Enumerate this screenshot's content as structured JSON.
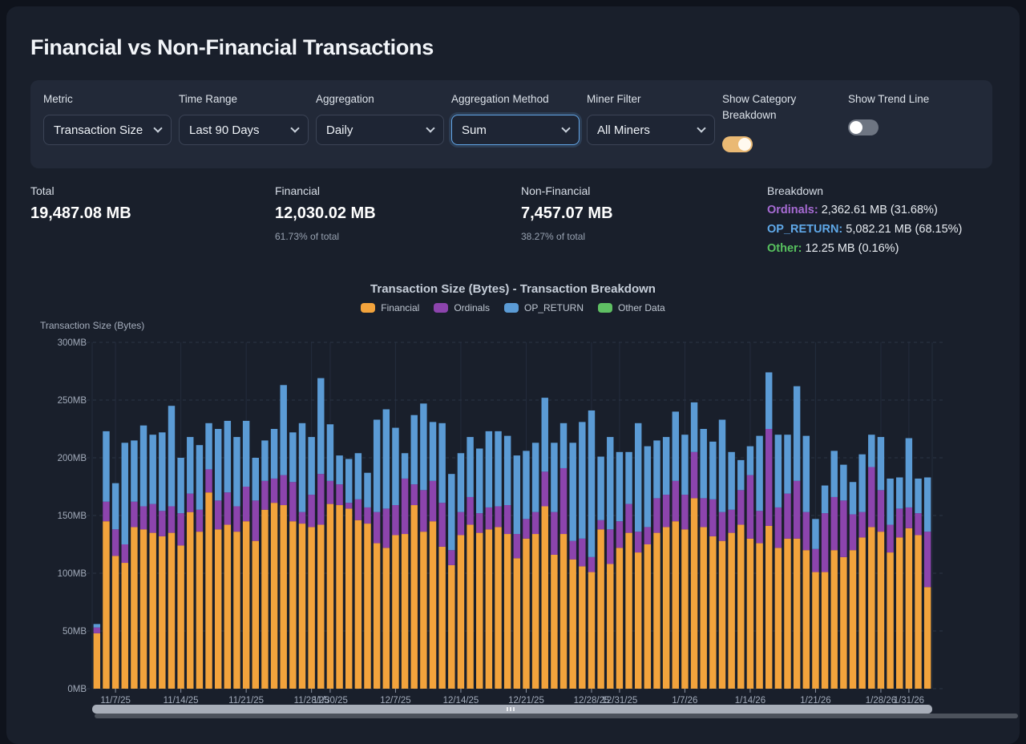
{
  "page": {
    "title": "Financial vs Non-Financial Transactions"
  },
  "controls": {
    "metric": {
      "label": "Metric",
      "value": "Transaction Size"
    },
    "time_range": {
      "label": "Time Range",
      "value": "Last 90 Days"
    },
    "aggregation": {
      "label": "Aggregation",
      "value": "Daily"
    },
    "aggregation_method": {
      "label": "Aggregation Method",
      "value": "Sum",
      "focused": true
    },
    "miner_filter": {
      "label": "Miner Filter",
      "value": "All Miners"
    },
    "show_category_breakdown": {
      "label": "Show Category Breakdown",
      "state": "on",
      "on_color": "#eab974"
    },
    "show_trend_line": {
      "label": "Show Trend Line",
      "state": "off"
    }
  },
  "stats": {
    "total": {
      "label": "Total",
      "value": "19,487.08 MB"
    },
    "financial": {
      "label": "Financial",
      "value": "12,030.02 MB",
      "subtext": "61.73% of total"
    },
    "non_financial": {
      "label": "Non-Financial",
      "value": "7,457.07 MB",
      "subtext": "38.27% of total"
    },
    "breakdown": {
      "label": "Breakdown",
      "items": [
        {
          "name": "Ordinals:",
          "value": "2,362.61 MB (31.68%)",
          "color": "#a76bd4"
        },
        {
          "name": "OP_RETURN:",
          "value": "5,082.21 MB (68.15%)",
          "color": "#5fa8e8"
        },
        {
          "name": "Other:",
          "value": "12.25 MB (0.16%)",
          "color": "#57c15e"
        }
      ]
    }
  },
  "chart_data": {
    "type": "bar",
    "stacked": true,
    "title": "Transaction Size (Bytes) - Transaction Breakdown",
    "y_axis_label": "Transaction Size (Bytes)",
    "unit": "MB",
    "ylim": [
      0,
      300
    ],
    "grid": true,
    "legend_position": "top",
    "y_ticks": [
      {
        "label": "0MB",
        "value": 0
      },
      {
        "label": "50MB",
        "value": 50
      },
      {
        "label": "100MB",
        "value": 100
      },
      {
        "label": "150MB",
        "value": 150
      },
      {
        "label": "200MB",
        "value": 200
      },
      {
        "label": "250MB",
        "value": 250
      },
      {
        "label": "300MB",
        "value": 300
      }
    ],
    "x_ticks": [
      {
        "label": "11/7/25",
        "index": 2
      },
      {
        "label": "11/14/25",
        "index": 9
      },
      {
        "label": "11/21/25",
        "index": 16
      },
      {
        "label": "11/28/25",
        "index": 23
      },
      {
        "label": "11/30/25",
        "index": 25
      },
      {
        "label": "12/7/25",
        "index": 32
      },
      {
        "label": "12/14/25",
        "index": 39
      },
      {
        "label": "12/21/25",
        "index": 46
      },
      {
        "label": "12/28/25",
        "index": 53
      },
      {
        "label": "12/31/25",
        "index": 56
      },
      {
        "label": "1/7/26",
        "index": 63
      },
      {
        "label": "1/14/26",
        "index": 70
      },
      {
        "label": "1/21/26",
        "index": 77
      },
      {
        "label": "1/28/26",
        "index": 84
      },
      {
        "label": "1/31/26",
        "index": 87
      }
    ],
    "dates": [
      "11/5/25",
      "11/6/25",
      "11/7/25",
      "11/8/25",
      "11/9/25",
      "11/10/25",
      "11/11/25",
      "11/12/25",
      "11/13/25",
      "11/14/25",
      "11/15/25",
      "11/16/25",
      "11/17/25",
      "11/18/25",
      "11/19/25",
      "11/20/25",
      "11/21/25",
      "11/22/25",
      "11/23/25",
      "11/24/25",
      "11/25/25",
      "11/26/25",
      "11/27/25",
      "11/28/25",
      "11/29/25",
      "11/30/25",
      "12/1/25",
      "12/2/25",
      "12/3/25",
      "12/4/25",
      "12/5/25",
      "12/6/25",
      "12/7/25",
      "12/8/25",
      "12/9/25",
      "12/10/25",
      "12/11/25",
      "12/12/25",
      "12/13/25",
      "12/14/25",
      "12/15/25",
      "12/16/25",
      "12/17/25",
      "12/18/25",
      "12/19/25",
      "12/20/25",
      "12/21/25",
      "12/22/25",
      "12/23/25",
      "12/24/25",
      "12/25/25",
      "12/26/25",
      "12/27/25",
      "12/28/25",
      "12/29/25",
      "12/30/25",
      "12/31/25",
      "1/1/26",
      "1/2/26",
      "1/3/26",
      "1/4/26",
      "1/5/26",
      "1/6/26",
      "1/7/26",
      "1/8/26",
      "1/9/26",
      "1/10/26",
      "1/11/26",
      "1/12/26",
      "1/13/26",
      "1/14/26",
      "1/15/26",
      "1/16/26",
      "1/17/26",
      "1/18/26",
      "1/19/26",
      "1/20/26",
      "1/21/26",
      "1/22/26",
      "1/23/26",
      "1/24/26",
      "1/25/26",
      "1/26/26",
      "1/27/26",
      "1/28/26",
      "1/29/26",
      "1/30/26",
      "1/31/26",
      "2/1/26",
      "2/2/26"
    ],
    "series": [
      {
        "name": "Financial",
        "color": "#f2a33c",
        "values": [
          48,
          145,
          115,
          109,
          140,
          138,
          135,
          132,
          135,
          124,
          153,
          136,
          170,
          138,
          142,
          136,
          145,
          128,
          155,
          161,
          159,
          145,
          143,
          140,
          142,
          160,
          159,
          156,
          146,
          143,
          126,
          122,
          133,
          134,
          159,
          136,
          145,
          123,
          107,
          133,
          142,
          135,
          138,
          140,
          134,
          113,
          130,
          134,
          158,
          116,
          134,
          112,
          106,
          101,
          138,
          108,
          122,
          135,
          118,
          125,
          135,
          140,
          145,
          138,
          165,
          140,
          132,
          128,
          135,
          142,
          130,
          126,
          141,
          122,
          130,
          130,
          120,
          101,
          101,
          120,
          114,
          120,
          131,
          140,
          136,
          118,
          131,
          139,
          133,
          88
        ]
      },
      {
        "name": "Ordinals",
        "color": "#8c44ad",
        "values": [
          5,
          17,
          23,
          16,
          22,
          20,
          25,
          22,
          23,
          28,
          16,
          19,
          20,
          25,
          28,
          22,
          30,
          35,
          25,
          21,
          26,
          34,
          10,
          28,
          44,
          20,
          18,
          5,
          18,
          14,
          27,
          34,
          26,
          48,
          18,
          36,
          35,
          38,
          13,
          20,
          24,
          17,
          19,
          18,
          25,
          21,
          17,
          19,
          30,
          37,
          57,
          16,
          24,
          13,
          8,
          30,
          23,
          25,
          18,
          15,
          30,
          28,
          35,
          30,
          40,
          25,
          32,
          25,
          20,
          30,
          55,
          28,
          84,
          35,
          39,
          50,
          33,
          20,
          51,
          46,
          49,
          31,
          22,
          52,
          36,
          24,
          25,
          18,
          19,
          48
        ]
      },
      {
        "name": "OP_RETURN",
        "color": "#5b9bd5",
        "values": [
          3,
          61,
          40,
          88,
          53,
          70,
          60,
          68,
          87,
          48,
          49,
          56,
          40,
          62,
          62,
          60,
          57,
          37,
          35,
          43,
          78,
          43,
          77,
          50,
          83,
          49,
          25,
          38,
          40,
          30,
          80,
          86,
          67,
          22,
          60,
          75,
          51,
          69,
          66,
          51,
          52,
          56,
          66,
          65,
          60,
          68,
          59,
          60,
          64,
          60,
          39,
          85,
          101,
          127,
          55,
          80,
          60,
          45,
          94,
          70,
          50,
          50,
          60,
          52,
          43,
          60,
          50,
          80,
          50,
          26,
          25,
          65,
          49,
          63,
          51,
          82,
          66,
          26,
          24,
          40,
          31,
          28,
          50,
          28,
          46,
          40,
          27,
          60,
          30,
          47
        ]
      },
      {
        "name": "Other Data",
        "color": "#5fbf63",
        "total_mb": 12.25
      }
    ]
  }
}
